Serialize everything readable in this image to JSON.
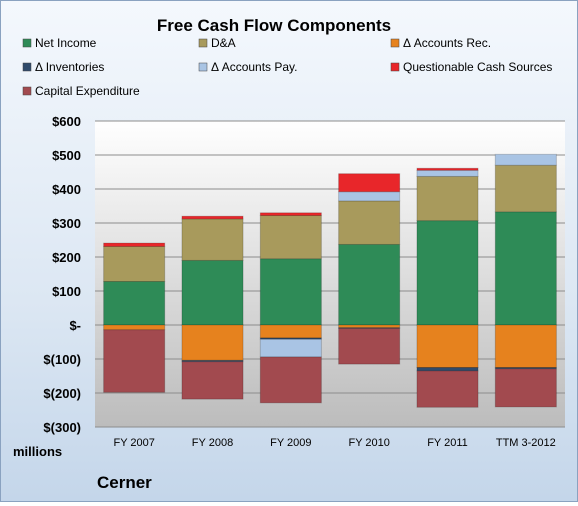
{
  "chart_data": {
    "type": "bar",
    "stacked": true,
    "title": "Free Cash Flow Components",
    "ylabel": "millions",
    "company_label": "Cerner",
    "categories": [
      "FY 2007",
      "FY 2008",
      "FY 2009",
      "FY 2010",
      "FY 2011",
      "TTM 3-2012"
    ],
    "ylim": [
      -300,
      600
    ],
    "ytick_values": [
      -300,
      -200,
      -100,
      0,
      100,
      200,
      300,
      400,
      500,
      600
    ],
    "ytick_labels": [
      "$(300)",
      "$(200)",
      "$(100)",
      "$-",
      "$100",
      "$200",
      "$300",
      "$400",
      "$500",
      "$600"
    ],
    "grid": true,
    "legend_position": "top",
    "series": [
      {
        "name": "Net Income",
        "color": "#2e8b57",
        "values": [
          128,
          190,
          195,
          237,
          307,
          333
        ]
      },
      {
        "name": "D&A",
        "color": "#a89a5c",
        "values": [
          103,
          122,
          127,
          128,
          130,
          137
        ]
      },
      {
        "name": "Δ Accounts Rec.",
        "color": "#e6821e",
        "values": [
          -14,
          -104,
          -38,
          -8,
          -125,
          -125
        ]
      },
      {
        "name": "Δ Inventories",
        "color": "#2f4a6b",
        "values": [
          0,
          -4,
          -4,
          -2,
          -10,
          -4
        ]
      },
      {
        "name": "Δ Accounts Pay.",
        "color": "#a9c4e4",
        "values": [
          0,
          0,
          -52,
          27,
          18,
          32
        ]
      },
      {
        "name": "Questionable Cash Sources",
        "color": "#e8262a",
        "values": [
          10,
          8,
          8,
          53,
          6,
          0
        ]
      },
      {
        "name": "Capital Expenditure",
        "color": "#a24a4f",
        "values": [
          -184,
          -110,
          -135,
          -105,
          -107,
          -112
        ]
      }
    ]
  }
}
